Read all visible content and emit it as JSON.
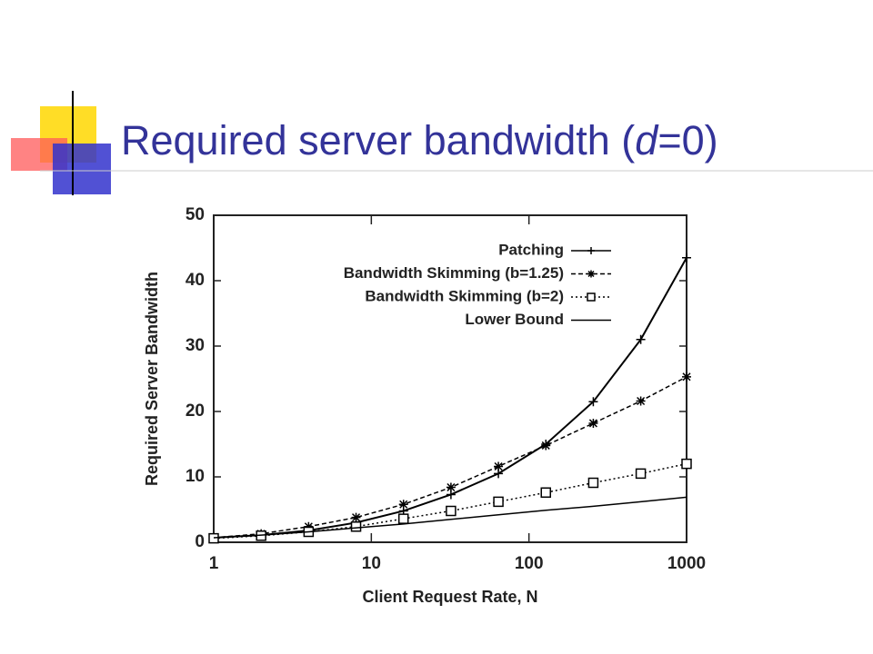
{
  "slide_title": {
    "text": "Required server bandwidth (",
    "italic": "d",
    "rest": "=0)"
  },
  "chart_data": {
    "type": "line",
    "x": [
      1,
      2,
      4,
      8,
      16,
      32,
      64,
      128,
      256,
      512,
      1000
    ],
    "xlabel": "Client Request Rate, N",
    "ylabel": "Required Server Bandwidth",
    "xscale": "log",
    "xlim": [
      1,
      1000
    ],
    "xticks": [
      1,
      10,
      100,
      1000
    ],
    "ylim": [
      0,
      50
    ],
    "yticks": [
      0,
      10,
      20,
      30,
      40,
      50
    ],
    "legend": "top-right",
    "series": [
      {
        "name": "Patching",
        "color": "#000000",
        "dash": "solid",
        "marker": "plus",
        "values": [
          0.7,
          1.1,
          1.8,
          3.0,
          4.8,
          7.3,
          10.5,
          15,
          21.5,
          31,
          43.5
        ]
      },
      {
        "name": "Bandwidth Skimming (b=1.25)",
        "color": "#000000",
        "dash": "dashed",
        "marker": "star",
        "values": [
          0.7,
          1.3,
          2.4,
          3.8,
          5.8,
          8.4,
          11.6,
          14.8,
          18.2,
          21.6,
          25.3
        ]
      },
      {
        "name": "Bandwidth Skimming (b=2)",
        "color": "#000000",
        "dash": "dotted",
        "marker": "square",
        "values": [
          0.6,
          1.0,
          1.6,
          2.4,
          3.6,
          4.8,
          6.2,
          7.6,
          9.1,
          10.5,
          12
        ]
      },
      {
        "name": "Lower Bound",
        "color": "#000000",
        "dash": "solid",
        "marker": "none",
        "values": [
          0.69,
          1.1,
          1.6,
          2.2,
          2.8,
          3.5,
          4.2,
          4.9,
          5.5,
          6.2,
          6.9
        ]
      }
    ]
  }
}
